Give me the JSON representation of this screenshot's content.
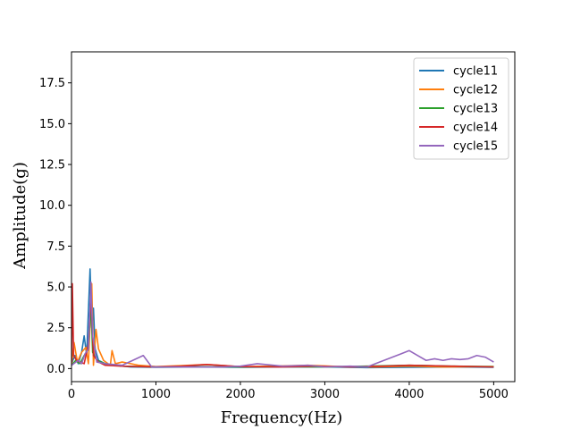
{
  "chart_data": {
    "type": "line",
    "title": "",
    "xlabel": "Frequency(Hz)",
    "ylabel": "Amplitude(g)",
    "xlim": [
      0,
      5250
    ],
    "ylim": [
      -0.8,
      19.4
    ],
    "xticks": [
      0,
      1000,
      2000,
      3000,
      4000,
      5000
    ],
    "xtick_labels": [
      "0",
      "1000",
      "2000",
      "3000",
      "4000",
      "5000"
    ],
    "yticks": [
      0.0,
      2.5,
      5.0,
      7.5,
      10.0,
      12.5,
      15.0,
      17.5
    ],
    "ytick_labels": [
      "0.0",
      "2.5",
      "5.0",
      "7.5",
      "10.0",
      "12.5",
      "15.0",
      "17.5"
    ],
    "grid": false,
    "legend_position": "top-right",
    "series": [
      {
        "name": "cycle11",
        "color": "#1f77b4",
        "points": [
          [
            0,
            0.3
          ],
          [
            40,
            0.8
          ],
          [
            80,
            0.3
          ],
          [
            120,
            1.0
          ],
          [
            150,
            2.0
          ],
          [
            180,
            0.8
          ],
          [
            200,
            3.5
          ],
          [
            220,
            6.1
          ],
          [
            240,
            2.5
          ],
          [
            260,
            3.7
          ],
          [
            280,
            1.2
          ],
          [
            320,
            0.5
          ],
          [
            400,
            0.3
          ],
          [
            500,
            0.2
          ],
          [
            700,
            0.1
          ],
          [
            1000,
            0.08
          ],
          [
            1500,
            0.1
          ],
          [
            2000,
            0.08
          ],
          [
            2500,
            0.1
          ],
          [
            3000,
            0.1
          ],
          [
            3500,
            0.06
          ],
          [
            4000,
            0.08
          ],
          [
            4500,
            0.1
          ],
          [
            5000,
            0.08
          ]
        ]
      },
      {
        "name": "cycle12",
        "color": "#ff7f0e",
        "points": [
          [
            0,
            0.2
          ],
          [
            30,
            1.6
          ],
          [
            70,
            0.4
          ],
          [
            120,
            1.0
          ],
          [
            170,
            1.3
          ],
          [
            200,
            0.3
          ],
          [
            240,
            5.2
          ],
          [
            260,
            0.2
          ],
          [
            290,
            2.4
          ],
          [
            320,
            1.2
          ],
          [
            380,
            0.5
          ],
          [
            460,
            0.2
          ],
          [
            480,
            1.1
          ],
          [
            520,
            0.3
          ],
          [
            600,
            0.4
          ],
          [
            800,
            0.2
          ],
          [
            1000,
            0.12
          ],
          [
            1400,
            0.2
          ],
          [
            1600,
            0.25
          ],
          [
            2000,
            0.12
          ],
          [
            2400,
            0.15
          ],
          [
            2800,
            0.2
          ],
          [
            3200,
            0.12
          ],
          [
            3600,
            0.1
          ],
          [
            4000,
            0.15
          ],
          [
            4400,
            0.1
          ],
          [
            5000,
            0.12
          ]
        ]
      },
      {
        "name": "cycle13",
        "color": "#2ca02c",
        "points": [
          [
            0,
            0.2
          ],
          [
            50,
            0.5
          ],
          [
            100,
            0.3
          ],
          [
            150,
            0.8
          ],
          [
            200,
            1.2
          ],
          [
            230,
            4.0
          ],
          [
            250,
            1.0
          ],
          [
            300,
            0.5
          ],
          [
            400,
            0.3
          ],
          [
            600,
            0.15
          ],
          [
            1000,
            0.1
          ],
          [
            1500,
            0.12
          ],
          [
            2000,
            0.1
          ],
          [
            2500,
            0.12
          ],
          [
            3000,
            0.1
          ],
          [
            3500,
            0.15
          ],
          [
            4000,
            0.2
          ],
          [
            4500,
            0.15
          ],
          [
            5000,
            0.12
          ]
        ]
      },
      {
        "name": "cycle14",
        "color": "#d62728",
        "points": [
          [
            0,
            0.4
          ],
          [
            10,
            5.2
          ],
          [
            25,
            0.8
          ],
          [
            60,
            0.5
          ],
          [
            100,
            0.4
          ],
          [
            150,
            0.3
          ],
          [
            200,
            1.5
          ],
          [
            230,
            4.5
          ],
          [
            260,
            0.8
          ],
          [
            320,
            0.4
          ],
          [
            400,
            0.2
          ],
          [
            600,
            0.15
          ],
          [
            1000,
            0.1
          ],
          [
            1300,
            0.15
          ],
          [
            1600,
            0.25
          ],
          [
            2000,
            0.12
          ],
          [
            2500,
            0.1
          ],
          [
            2900,
            0.15
          ],
          [
            3300,
            0.1
          ],
          [
            3700,
            0.15
          ],
          [
            4000,
            0.2
          ],
          [
            4500,
            0.15
          ],
          [
            5000,
            0.1
          ]
        ]
      },
      {
        "name": "cycle15",
        "color": "#9467bd",
        "points": [
          [
            0,
            0.2
          ],
          [
            80,
            0.5
          ],
          [
            120,
            0.3
          ],
          [
            160,
            0.9
          ],
          [
            200,
            1.2
          ],
          [
            230,
            5.3
          ],
          [
            250,
            2.0
          ],
          [
            300,
            0.4
          ],
          [
            400,
            0.3
          ],
          [
            600,
            0.2
          ],
          [
            850,
            0.8
          ],
          [
            950,
            0.1
          ],
          [
            1200,
            0.1
          ],
          [
            1500,
            0.1
          ],
          [
            1800,
            0.1
          ],
          [
            2000,
            0.15
          ],
          [
            2200,
            0.3
          ],
          [
            2500,
            0.15
          ],
          [
            2800,
            0.2
          ],
          [
            3000,
            0.1
          ],
          [
            3300,
            0.15
          ],
          [
            3500,
            0.1
          ],
          [
            3600,
            0.3
          ],
          [
            3700,
            0.5
          ],
          [
            3800,
            0.7
          ],
          [
            3900,
            0.9
          ],
          [
            4000,
            1.1
          ],
          [
            4100,
            0.8
          ],
          [
            4200,
            0.5
          ],
          [
            4300,
            0.6
          ],
          [
            4400,
            0.5
          ],
          [
            4500,
            0.6
          ],
          [
            4600,
            0.55
          ],
          [
            4700,
            0.6
          ],
          [
            4800,
            0.8
          ],
          [
            4900,
            0.7
          ],
          [
            5000,
            0.4
          ]
        ]
      }
    ]
  }
}
